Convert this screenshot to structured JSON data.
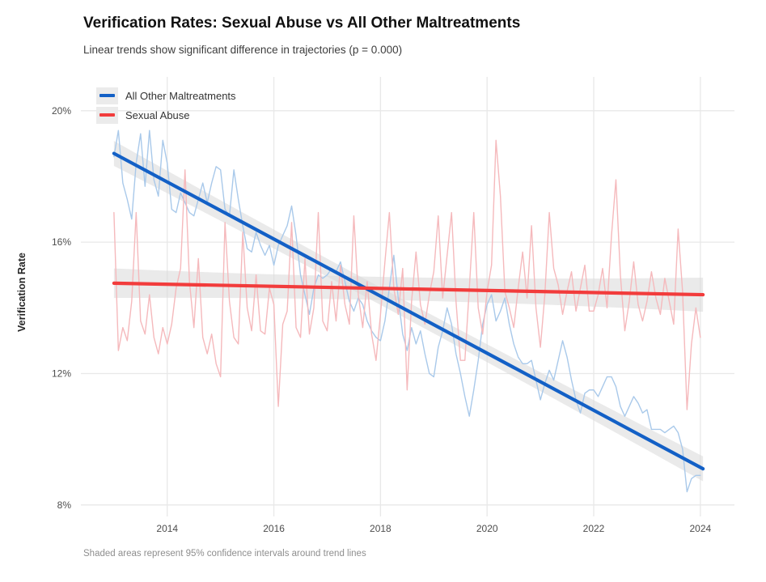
{
  "chart": {
    "title": "Verification Rates: Sexual Abuse vs All Other Maltreatments",
    "subtitle": "Linear trends show significant difference in trajectories (p = 0.000)",
    "ylabel": "Verification Rate",
    "caption": "Shaded areas represent 95% confidence intervals around trend lines"
  },
  "chart_data": {
    "type": "line",
    "title": "Verification Rates: Sexual Abuse vs All Other Maltreatments",
    "subtitle": "Linear trends show significant difference in trajectories (p = 0.000)",
    "xlabel": "",
    "ylabel": "Verification Rate",
    "caption": "Shaded areas represent 95% confidence intervals around trend lines",
    "grid": "major-only",
    "legend_position": "top-left-inside",
    "x_axis": {
      "range": [
        2012.38,
        2024.64
      ],
      "ticks": [
        {
          "v": 2014,
          "label": "2014"
        },
        {
          "v": 2016,
          "label": "2016"
        },
        {
          "v": 2018,
          "label": "2018"
        },
        {
          "v": 2020,
          "label": "2020"
        },
        {
          "v": 2022,
          "label": "2022"
        },
        {
          "v": 2024,
          "label": "2024"
        }
      ]
    },
    "y_axis": {
      "range": [
        7.65,
        21.03
      ],
      "unit": "%",
      "ticks": [
        {
          "v": 8,
          "label": "8%"
        },
        {
          "v": 12,
          "label": "12%"
        },
        {
          "v": 16,
          "label": "16%"
        },
        {
          "v": 20,
          "label": "20%"
        }
      ]
    },
    "colors": {
      "blue_trend": "#1360c6",
      "red_trend": "#f23c3c",
      "blue_observed": "#a9c9ea",
      "red_observed": "#f5b9bc",
      "ci_band": "#d9d9d9",
      "gridline": "#e8e8e8"
    },
    "series": [
      {
        "name": "All Other Maltreatments (monthly observed)",
        "role": "observed",
        "color": "#a9c9ea",
        "start_year": 2013.0,
        "step_years": 0.0833333,
        "values": [
          18.6,
          19.4,
          17.8,
          17.3,
          16.7,
          18.4,
          19.3,
          17.7,
          19.4,
          17.9,
          17.4,
          19.1,
          18.4,
          17.0,
          16.9,
          17.5,
          17.2,
          16.9,
          16.8,
          17.3,
          17.8,
          17.2,
          17.8,
          18.3,
          18.2,
          17.0,
          16.8,
          18.2,
          17.3,
          16.5,
          15.8,
          15.7,
          16.3,
          15.9,
          15.6,
          15.9,
          15.3,
          15.9,
          16.2,
          16.5,
          17.1,
          16.2,
          15.0,
          14.4,
          13.8,
          14.6,
          15.0,
          14.9,
          15.0,
          15.2,
          15.1,
          15.4,
          14.8,
          14.2,
          13.9,
          14.3,
          14.1,
          13.6,
          13.3,
          13.1,
          13.0,
          13.6,
          14.6,
          15.6,
          14.3,
          13.2,
          12.7,
          13.4,
          12.9,
          13.3,
          12.6,
          12.0,
          11.9,
          12.8,
          13.3,
          14.0,
          13.5,
          12.6,
          12.0,
          11.3,
          10.7,
          11.5,
          12.4,
          13.5,
          14.1,
          14.4,
          13.6,
          13.9,
          14.3,
          13.5,
          12.9,
          12.5,
          12.3,
          12.3,
          12.4,
          11.8,
          11.2,
          11.7,
          12.1,
          11.8,
          12.4,
          13.0,
          12.5,
          11.8,
          11.2,
          10.8,
          11.4,
          11.5,
          11.5,
          11.3,
          11.6,
          11.9,
          11.9,
          11.6,
          11.0,
          10.7,
          11.0,
          11.3,
          11.1,
          10.8,
          10.9,
          10.3,
          10.3,
          10.3,
          10.2,
          10.3,
          10.4,
          10.2,
          9.7,
          8.4,
          8.8,
          8.9,
          8.9
        ]
      },
      {
        "name": "Sexual Abuse (monthly observed)",
        "role": "observed",
        "color": "#f5b9bc",
        "start_year": 2013.0,
        "step_years": 0.0833333,
        "values": [
          16.9,
          12.7,
          13.4,
          13.0,
          14.2,
          16.9,
          13.6,
          13.2,
          14.4,
          13.1,
          12.6,
          13.4,
          12.9,
          13.5,
          14.6,
          15.2,
          18.2,
          14.8,
          13.4,
          15.5,
          13.1,
          12.6,
          13.2,
          12.3,
          11.9,
          16.6,
          14.2,
          13.1,
          12.9,
          16.3,
          14.0,
          13.3,
          15.0,
          13.3,
          13.2,
          14.6,
          14.1,
          11.0,
          13.5,
          13.9,
          16.6,
          13.4,
          13.1,
          15.5,
          13.2,
          14.0,
          16.9,
          13.6,
          13.3,
          14.8,
          13.6,
          15.3,
          14.1,
          13.5,
          16.8,
          14.4,
          13.4,
          14.8,
          13.2,
          12.4,
          13.8,
          15.4,
          16.9,
          14.6,
          13.8,
          15.2,
          11.5,
          14.2,
          15.7,
          14.1,
          13.5,
          14.4,
          15.1,
          16.8,
          14.3,
          15.6,
          16.9,
          14.2,
          12.4,
          12.4,
          14.6,
          16.9,
          14.0,
          13.2,
          14.5,
          15.3,
          19.1,
          17.4,
          14.5,
          14.0,
          13.4,
          14.6,
          15.7,
          14.3,
          16.5,
          14.0,
          12.8,
          14.4,
          16.9,
          15.2,
          14.7,
          13.8,
          14.5,
          15.1,
          13.9,
          14.6,
          15.3,
          13.9,
          13.9,
          14.4,
          15.2,
          14.0,
          16.2,
          17.9,
          15.0,
          13.3,
          14.2,
          15.4,
          14.1,
          13.6,
          14.2,
          15.1,
          14.3,
          13.8,
          14.9,
          14.2,
          13.5,
          16.4,
          14.5,
          10.9,
          12.9,
          14.0,
          13.1
        ]
      }
    ],
    "trends": [
      {
        "name": "All Other Maltreatments",
        "role": "linear-trend",
        "color": "#1360c6",
        "x": [
          2013.0,
          2024.05
        ],
        "y": [
          18.7,
          9.1
        ],
        "ci_half_width": {
          "start": 0.38,
          "mid": 0.15,
          "end": 0.38
        },
        "band_color": "#d9d9d9"
      },
      {
        "name": "Sexual Abuse",
        "role": "linear-trend",
        "color": "#f23c3c",
        "x": [
          2013.0,
          2024.05
        ],
        "y": [
          14.75,
          14.4
        ],
        "ci_half_width": {
          "start": 0.45,
          "mid": 0.22,
          "end": 0.52
        },
        "band_color": "#d9d9d9"
      }
    ],
    "legend": {
      "items": [
        {
          "label": "All Other Maltreatments",
          "color": "#1360c6"
        },
        {
          "label": "Sexual Abuse",
          "color": "#f23c3c"
        }
      ]
    }
  }
}
